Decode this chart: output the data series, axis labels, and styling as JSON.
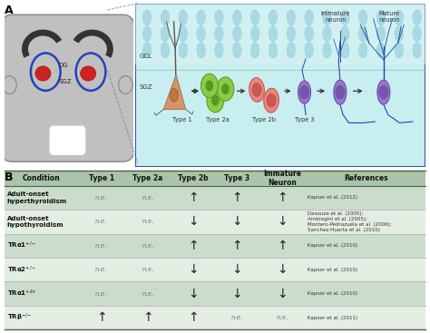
{
  "fig_width": 4.74,
  "fig_height": 3.67,
  "dpi": 100,
  "table_header": [
    "Condition",
    "Type 1",
    "Type 2a",
    "Type 2b",
    "Type 3",
    "Immature\nNeuron",
    "References"
  ],
  "table_rows": [
    [
      "Adult-onset\nhyperthyroidism",
      "n.e.",
      "n.e.",
      "↑",
      "↑",
      "↑",
      "Kapoor et al. (2012)"
    ],
    [
      "Adult-onset\nhypothyroidism",
      "n.e.",
      "n.e.",
      "↓",
      "↓",
      "↓",
      "Desouza et al. (2005);\nAmbrogini et al. (2005);\nMontero-Pedrazuela et al. (2006);\nSanchez-Huerta et al. (2010)"
    ],
    [
      "TRα1$^{+/-}$",
      "n.e.",
      "n.e.",
      "↑",
      "↑",
      "↑",
      "Kapoor et al. (2010)"
    ],
    [
      "TRα2$^{+/-}$",
      "n.e.",
      "n.e.",
      "↓",
      "↓",
      "↓",
      "Kapoor et al. (2010)"
    ],
    [
      "TRα1$^{+/m}$",
      "n.e.",
      "n.e.",
      "↓",
      "↓",
      "↓",
      "Kapoor et al. (2010)"
    ],
    [
      "TRβ$^{-/-}$",
      "↑",
      "↑",
      "↑",
      "n.e.",
      "n.e.",
      "Kapoor et al. (2011)"
    ]
  ],
  "cond_labels": [
    "Adult-onset\nhyperthyroidism",
    "Adult-onset\nhypothyroidism",
    "TRα1+/-",
    "TRα2+/-",
    "TRα1+/m",
    "TRβ-/-"
  ],
  "row_bg_colors": [
    "#ccdccc",
    "#e4ede4",
    "#ccdccc",
    "#e4ede4",
    "#ccdccc",
    "#e4ede4"
  ],
  "header_bg": "#aac4aa",
  "diagram_bg_top": "#c8eef0",
  "diagram_bg_bot": "#a0d4d8",
  "brain_color": "#c0c0c0",
  "brain_edge": "#909090",
  "ventricle_color": "#333333",
  "dg_color": "#cc2222",
  "hippo_circle_color": "#2244bb",
  "type1_body": "#d4956a",
  "type1_nucleus": "#c07840",
  "type2a_body": "#88cc44",
  "type2a_nucleus": "#559922",
  "type2b_body": "#e88878",
  "type2b_nucleus": "#cc5555",
  "type3_body": "#9977cc",
  "type3_nucleus": "#7755aa",
  "immature_body": "#9977cc",
  "immature_nucleus": "#7755aa",
  "mature_body": "#9977cc",
  "mature_nucleus": "#7755aa",
  "neurite_color": "#2244aa",
  "arrow_color": "#333333",
  "drop_color": "#88c8d8",
  "gcl_sgz_line": "#99bbcc"
}
